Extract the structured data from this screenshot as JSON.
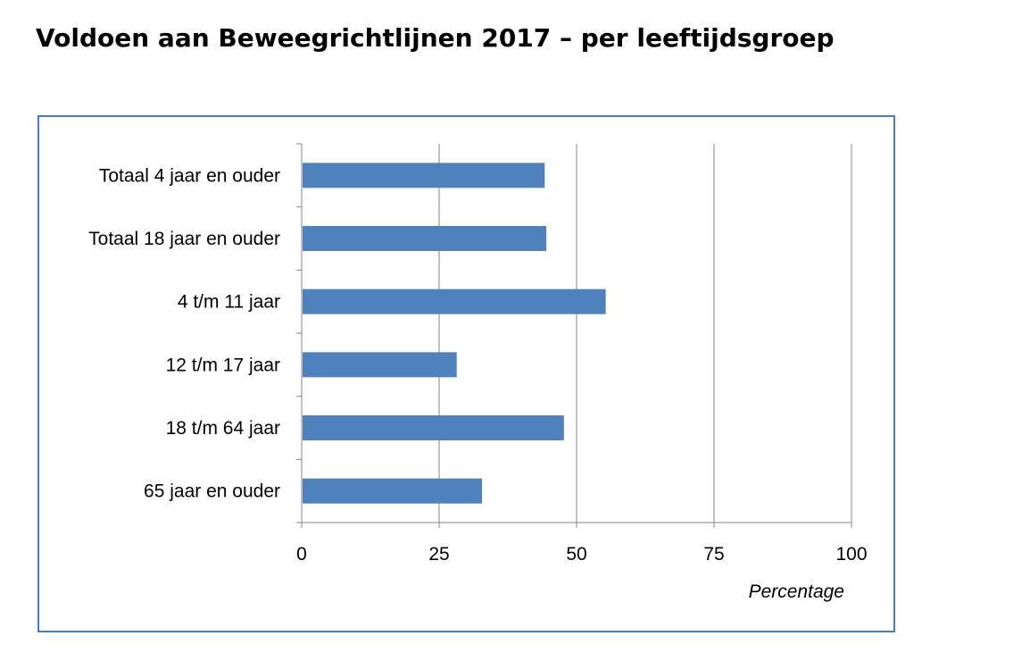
{
  "page": {
    "title": "Voldoen aan Beweegrichtlijnen 2017 – per leeftijdsgroep"
  },
  "chart_data": {
    "type": "bar",
    "orientation": "horizontal",
    "title": "",
    "categories": [
      "Totaal 4 jaar en ouder",
      "Totaal 18 jaar en ouder",
      "4 t/m 11 jaar",
      "12 t/m 17 jaar",
      "18 t/m 64 jaar",
      "65 jaar en ouder"
    ],
    "values": [
      44.2,
      44.5,
      55.3,
      28.2,
      47.7,
      32.8
    ],
    "xlabel": "Percentage",
    "ylabel": "",
    "xlim": [
      0,
      100
    ],
    "xticks": [
      "0",
      "25",
      "50",
      "75",
      "100"
    ],
    "grid": true,
    "legend": "none",
    "colors": {
      "bar": "#4f81bd",
      "gridline": "#868686",
      "frame": "#4a7ebb"
    }
  }
}
